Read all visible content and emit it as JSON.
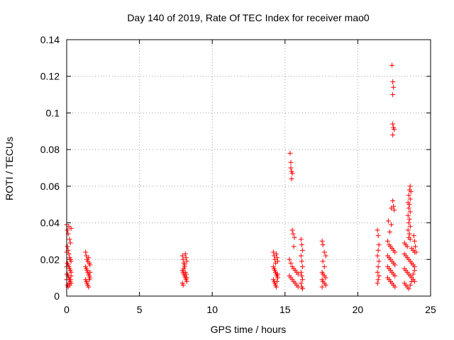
{
  "chart_data": {
    "type": "scatter",
    "title": "Day 140 of 2019, Rate Of TEC Index for receiver mao0",
    "xlabel": "GPS time / hours",
    "ylabel": "ROTI / TECUs",
    "xlim": [
      0,
      25
    ],
    "ylim": [
      0,
      0.14
    ],
    "xticks": [
      0,
      5,
      10,
      15,
      20,
      25
    ],
    "xtick_labels": [
      "0",
      "5",
      "10",
      "15",
      "20",
      "25"
    ],
    "yticks": [
      0,
      0.02,
      0.04,
      0.06,
      0.08,
      0.1,
      0.12,
      0.14
    ],
    "ytick_labels": [
      "0",
      "0.02",
      "0.04",
      "0.06",
      "0.08",
      "0.1",
      "0.12",
      "0.14"
    ],
    "grid": true,
    "marker": "+",
    "color": "#ff0000",
    "series": [
      {
        "name": "ROTI",
        "points": [
          [
            0.0,
            0.039
          ],
          [
            0.05,
            0.036
          ],
          [
            0.1,
            0.034
          ],
          [
            0.15,
            0.038
          ],
          [
            0.2,
            0.031
          ],
          [
            0.25,
            0.029
          ],
          [
            0.3,
            0.037
          ],
          [
            0.05,
            0.027
          ],
          [
            0.1,
            0.025
          ],
          [
            0.15,
            0.023
          ],
          [
            0.2,
            0.021
          ],
          [
            0.25,
            0.02
          ],
          [
            0.3,
            0.019
          ],
          [
            0.0,
            0.024
          ],
          [
            0.05,
            0.018
          ],
          [
            0.1,
            0.017
          ],
          [
            0.15,
            0.016
          ],
          [
            0.2,
            0.015
          ],
          [
            0.25,
            0.014
          ],
          [
            0.3,
            0.013
          ],
          [
            0.0,
            0.016
          ],
          [
            0.05,
            0.012
          ],
          [
            0.1,
            0.011
          ],
          [
            0.15,
            0.01
          ],
          [
            0.2,
            0.009
          ],
          [
            0.25,
            0.008
          ],
          [
            0.3,
            0.007
          ],
          [
            0.0,
            0.009
          ],
          [
            0.05,
            0.006
          ],
          [
            0.1,
            0.005
          ],
          [
            0.15,
            0.007
          ],
          [
            0.2,
            0.006
          ],
          [
            0.25,
            0.009
          ],
          [
            0.3,
            0.011
          ],
          [
            0.0,
            0.012
          ],
          [
            1.3,
            0.024
          ],
          [
            1.35,
            0.022
          ],
          [
            1.4,
            0.02
          ],
          [
            1.45,
            0.019
          ],
          [
            1.5,
            0.021
          ],
          [
            1.55,
            0.018
          ],
          [
            1.6,
            0.017
          ],
          [
            1.3,
            0.016
          ],
          [
            1.35,
            0.015
          ],
          [
            1.4,
            0.014
          ],
          [
            1.45,
            0.013
          ],
          [
            1.5,
            0.012
          ],
          [
            1.55,
            0.011
          ],
          [
            1.6,
            0.01
          ],
          [
            1.3,
            0.009
          ],
          [
            1.35,
            0.008
          ],
          [
            1.4,
            0.007
          ],
          [
            1.45,
            0.006
          ],
          [
            1.5,
            0.005
          ],
          [
            1.55,
            0.009
          ],
          [
            1.6,
            0.013
          ],
          [
            7.95,
            0.022
          ],
          [
            8.0,
            0.02
          ],
          [
            8.05,
            0.018
          ],
          [
            8.1,
            0.016
          ],
          [
            8.15,
            0.023
          ],
          [
            8.2,
            0.021
          ],
          [
            8.25,
            0.019
          ],
          [
            7.95,
            0.014
          ],
          [
            8.0,
            0.013
          ],
          [
            8.05,
            0.012
          ],
          [
            8.1,
            0.011
          ],
          [
            8.15,
            0.01
          ],
          [
            8.2,
            0.009
          ],
          [
            8.25,
            0.008
          ],
          [
            7.95,
            0.007
          ],
          [
            8.0,
            0.006
          ],
          [
            8.05,
            0.015
          ],
          [
            8.1,
            0.017
          ],
          [
            8.15,
            0.013
          ],
          [
            8.2,
            0.012
          ],
          [
            8.25,
            0.01
          ],
          [
            14.2,
            0.024
          ],
          [
            14.25,
            0.022
          ],
          [
            14.3,
            0.02
          ],
          [
            14.35,
            0.018
          ],
          [
            14.4,
            0.023
          ],
          [
            14.45,
            0.021
          ],
          [
            14.5,
            0.019
          ],
          [
            14.2,
            0.016
          ],
          [
            14.25,
            0.015
          ],
          [
            14.3,
            0.014
          ],
          [
            14.35,
            0.013
          ],
          [
            14.4,
            0.012
          ],
          [
            14.45,
            0.011
          ],
          [
            14.5,
            0.01
          ],
          [
            14.2,
            0.009
          ],
          [
            14.25,
            0.008
          ],
          [
            14.3,
            0.007
          ],
          [
            14.35,
            0.006
          ],
          [
            14.4,
            0.005
          ],
          [
            14.45,
            0.008
          ],
          [
            14.5,
            0.012
          ],
          [
            15.35,
            0.078
          ],
          [
            15.4,
            0.073
          ],
          [
            15.4,
            0.07
          ],
          [
            15.45,
            0.068
          ],
          [
            15.5,
            0.067
          ],
          [
            15.45,
            0.064
          ],
          [
            15.5,
            0.036
          ],
          [
            15.55,
            0.034
          ],
          [
            15.65,
            0.032
          ],
          [
            15.6,
            0.027
          ],
          [
            15.3,
            0.02
          ],
          [
            15.4,
            0.018
          ],
          [
            15.5,
            0.016
          ],
          [
            15.6,
            0.015
          ],
          [
            15.7,
            0.014
          ],
          [
            15.8,
            0.013
          ],
          [
            15.9,
            0.012
          ],
          [
            15.3,
            0.011
          ],
          [
            15.4,
            0.01
          ],
          [
            15.5,
            0.009
          ],
          [
            15.6,
            0.008
          ],
          [
            15.7,
            0.007
          ],
          [
            15.8,
            0.006
          ],
          [
            15.9,
            0.005
          ],
          [
            16.1,
            0.031
          ],
          [
            16.15,
            0.028
          ],
          [
            16.2,
            0.025
          ],
          [
            16.1,
            0.022
          ],
          [
            16.15,
            0.019
          ],
          [
            16.2,
            0.016
          ],
          [
            16.1,
            0.013
          ],
          [
            16.15,
            0.011
          ],
          [
            16.2,
            0.009
          ],
          [
            16.1,
            0.007
          ],
          [
            16.15,
            0.005
          ],
          [
            16.2,
            0.004
          ],
          [
            17.55,
            0.03
          ],
          [
            17.6,
            0.028
          ],
          [
            17.7,
            0.024
          ],
          [
            17.8,
            0.022
          ],
          [
            17.6,
            0.019
          ],
          [
            17.7,
            0.016
          ],
          [
            17.55,
            0.013
          ],
          [
            17.6,
            0.012
          ],
          [
            17.7,
            0.011
          ],
          [
            17.8,
            0.01
          ],
          [
            17.55,
            0.009
          ],
          [
            17.6,
            0.008
          ],
          [
            17.7,
            0.007
          ],
          [
            17.8,
            0.006
          ],
          [
            17.55,
            0.005
          ],
          [
            21.35,
            0.036
          ],
          [
            21.4,
            0.033
          ],
          [
            21.45,
            0.028
          ],
          [
            21.4,
            0.025
          ],
          [
            21.35,
            0.022
          ],
          [
            21.45,
            0.019
          ],
          [
            21.4,
            0.016
          ],
          [
            21.35,
            0.013
          ],
          [
            21.45,
            0.011
          ],
          [
            21.4,
            0.009
          ],
          [
            21.35,
            0.007
          ],
          [
            22.35,
            0.126
          ],
          [
            22.4,
            0.117
          ],
          [
            22.45,
            0.114
          ],
          [
            22.4,
            0.11
          ],
          [
            22.4,
            0.094
          ],
          [
            22.45,
            0.092
          ],
          [
            22.5,
            0.091
          ],
          [
            22.4,
            0.088
          ],
          [
            22.4,
            0.052
          ],
          [
            22.45,
            0.049
          ],
          [
            22.3,
            0.048
          ],
          [
            22.5,
            0.047
          ],
          [
            22.1,
            0.041
          ],
          [
            22.3,
            0.039
          ],
          [
            22.2,
            0.035
          ],
          [
            22.05,
            0.03
          ],
          [
            22.15,
            0.028
          ],
          [
            22.25,
            0.027
          ],
          [
            22.35,
            0.026
          ],
          [
            22.45,
            0.025
          ],
          [
            22.55,
            0.024
          ],
          [
            22.05,
            0.022
          ],
          [
            22.15,
            0.021
          ],
          [
            22.25,
            0.02
          ],
          [
            22.35,
            0.019
          ],
          [
            22.45,
            0.018
          ],
          [
            22.55,
            0.017
          ],
          [
            22.05,
            0.016
          ],
          [
            22.15,
            0.015
          ],
          [
            22.25,
            0.014
          ],
          [
            22.35,
            0.013
          ],
          [
            22.45,
            0.012
          ],
          [
            22.55,
            0.011
          ],
          [
            22.05,
            0.01
          ],
          [
            22.15,
            0.009
          ],
          [
            22.25,
            0.008
          ],
          [
            22.35,
            0.007
          ],
          [
            22.45,
            0.006
          ],
          [
            22.55,
            0.005
          ],
          [
            23.6,
            0.06
          ],
          [
            23.55,
            0.058
          ],
          [
            23.65,
            0.057
          ],
          [
            23.5,
            0.055
          ],
          [
            23.6,
            0.053
          ],
          [
            23.45,
            0.051
          ],
          [
            23.55,
            0.05
          ],
          [
            23.5,
            0.048
          ],
          [
            23.6,
            0.046
          ],
          [
            23.45,
            0.044
          ],
          [
            23.55,
            0.042
          ],
          [
            23.5,
            0.04
          ],
          [
            23.6,
            0.038
          ],
          [
            23.45,
            0.036
          ],
          [
            23.55,
            0.034
          ],
          [
            23.5,
            0.032
          ],
          [
            23.6,
            0.031
          ],
          [
            23.2,
            0.029
          ],
          [
            23.3,
            0.028
          ],
          [
            23.4,
            0.027
          ],
          [
            23.7,
            0.026
          ],
          [
            23.8,
            0.025
          ],
          [
            23.9,
            0.024
          ],
          [
            23.2,
            0.023
          ],
          [
            23.3,
            0.022
          ],
          [
            23.4,
            0.021
          ],
          [
            23.5,
            0.02
          ],
          [
            23.6,
            0.019
          ],
          [
            23.7,
            0.018
          ],
          [
            23.8,
            0.017
          ],
          [
            23.9,
            0.016
          ],
          [
            23.2,
            0.015
          ],
          [
            23.3,
            0.014
          ],
          [
            23.4,
            0.013
          ],
          [
            23.5,
            0.012
          ],
          [
            23.6,
            0.011
          ],
          [
            23.7,
            0.01
          ],
          [
            23.8,
            0.009
          ],
          [
            23.9,
            0.008
          ],
          [
            23.2,
            0.007
          ],
          [
            23.3,
            0.006
          ],
          [
            23.4,
            0.005
          ],
          [
            23.5,
            0.004
          ],
          [
            23.6,
            0.006
          ],
          [
            23.7,
            0.008
          ],
          [
            23.8,
            0.012
          ],
          [
            23.9,
            0.014
          ],
          [
            23.85,
            0.033
          ],
          [
            23.9,
            0.03
          ],
          [
            23.95,
            0.027
          ],
          [
            24.0,
            0.024
          ]
        ]
      }
    ]
  }
}
